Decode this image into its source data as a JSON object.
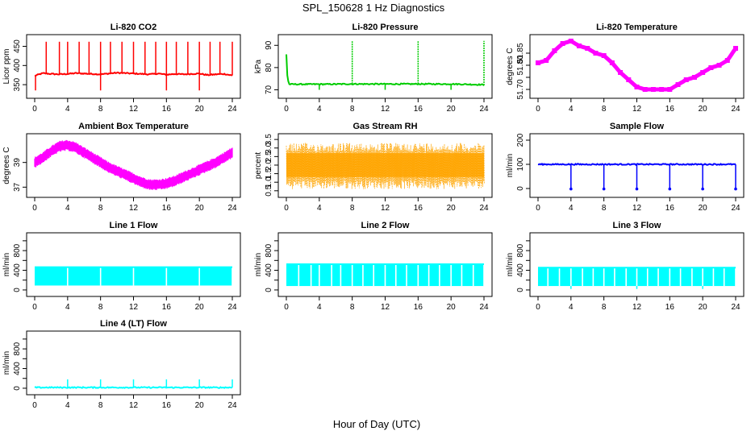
{
  "figure": {
    "title": "SPL_150628  1 Hz Diagnostics",
    "xlabel": "Hour of Day (UTC)"
  },
  "chart_data": [
    {
      "type": "line",
      "title": "Li-820 CO2",
      "ylabel": "Licor ppm",
      "color": "#ff0000",
      "xlim": [
        0,
        24
      ],
      "ylim": [
        325,
        470
      ],
      "xticks": [
        0,
        4,
        8,
        12,
        16,
        20,
        24
      ],
      "yticks": [
        350,
        400,
        450
      ],
      "x": [
        0,
        1,
        2,
        3,
        4,
        5,
        6,
        7,
        8,
        9,
        10,
        11,
        12,
        13,
        14,
        15,
        16,
        17,
        18,
        19,
        20,
        21,
        22,
        23,
        24
      ],
      "values": [
        373,
        380,
        378,
        377,
        378,
        380,
        379,
        378,
        377,
        379,
        381,
        380,
        379,
        378,
        377,
        379,
        376,
        378,
        377,
        378,
        379,
        375,
        377,
        378,
        374
      ],
      "spikes_up_x": [
        1.4,
        3.0,
        4.0,
        5.4,
        6.6,
        8.0,
        9.2,
        10.6,
        12.0,
        13.4,
        14.7,
        16.0,
        17.2,
        18.6,
        20.0,
        21.3,
        22.5,
        24.0
      ],
      "spike_top": 462,
      "spikes_down_x": [
        0.1,
        8.0,
        16.0,
        20.0
      ],
      "spike_bottom": 335
    },
    {
      "type": "line",
      "title": "Li-820 Pressure",
      "ylabel": "kPa",
      "color": "#00cc00",
      "xlim": [
        0,
        24
      ],
      "ylim": [
        68,
        93
      ],
      "xticks": [
        0,
        4,
        8,
        12,
        16,
        20,
        24
      ],
      "yticks": [
        70,
        80,
        90
      ],
      "x": [
        0,
        0.1,
        0.3,
        4,
        8,
        12,
        16,
        20,
        23.8,
        24
      ],
      "values": [
        86,
        77,
        72.5,
        72.5,
        72.6,
        72.6,
        72.6,
        72.6,
        72.3,
        72
      ],
      "spikes_up_x": [
        8.0,
        16.0,
        24.0
      ],
      "spike_top": 92,
      "spikes_down_x": [
        4.0,
        12.0,
        20.0
      ],
      "spike_bottom": 70
    },
    {
      "type": "line",
      "title": "Li-820 Temperature",
      "ylabel": "degrees C",
      "color": "#ff00ff",
      "xlim": [
        0,
        24
      ],
      "ylim": [
        51.68,
        51.91
      ],
      "xticks": [
        0,
        4,
        8,
        12,
        16,
        20,
        24
      ],
      "yticks": [
        51.7,
        51.75,
        51.8,
        51.85
      ],
      "yticklabels": [
        "51.70",
        "",
        "51.80",
        "51.85"
      ],
      "x": [
        0,
        1,
        2,
        3,
        4,
        5,
        6,
        7,
        8,
        9,
        10,
        11,
        12,
        13,
        14,
        15,
        16,
        17,
        18,
        19,
        20,
        21,
        22,
        23,
        24
      ],
      "values": [
        51.81,
        51.82,
        51.86,
        51.89,
        51.9,
        51.88,
        51.87,
        51.85,
        51.84,
        51.81,
        51.77,
        51.74,
        51.71,
        51.7,
        51.7,
        51.7,
        51.7,
        51.72,
        51.74,
        51.75,
        51.77,
        51.79,
        51.8,
        51.82,
        51.87
      ]
    },
    {
      "type": "line",
      "title": "Ambient Box Temperature",
      "ylabel": "degrees C",
      "color": "#ff00ff",
      "xlim": [
        0,
        24
      ],
      "ylim": [
        36.5,
        41
      ],
      "xticks": [
        0,
        4,
        8,
        12,
        16,
        20,
        24
      ],
      "yticks": [
        37,
        39
      ],
      "x": [
        0,
        1,
        2,
        3,
        4,
        5,
        6,
        7,
        8,
        9,
        10,
        11,
        12,
        13,
        14,
        15,
        16,
        17,
        18,
        19,
        20,
        21,
        22,
        23,
        24
      ],
      "values": [
        39.0,
        39.4,
        39.9,
        40.3,
        40.4,
        40.2,
        39.8,
        39.4,
        39.0,
        38.6,
        38.3,
        38.0,
        37.7,
        37.4,
        37.2,
        37.2,
        37.3,
        37.5,
        37.8,
        38.1,
        38.4,
        38.7,
        39.0,
        39.4,
        39.8
      ],
      "band": 0.9
    },
    {
      "type": "line",
      "title": "Gas Stream RH",
      "ylabel": "percent",
      "color": "#ffa500",
      "xlim": [
        0,
        24
      ],
      "ylim": [
        0.35,
        3.6
      ],
      "xticks": [
        0,
        4,
        8,
        12,
        16,
        20,
        24
      ],
      "yticks": [
        0.5,
        1.0,
        1.5,
        2.0,
        2.5,
        3.0,
        3.5
      ],
      "yticklabels": [
        "0.5",
        "1.0",
        "1.5",
        "2.0",
        "2.5",
        "3.0",
        "3.5"
      ],
      "x": [
        0,
        24
      ],
      "values": [
        2.0,
        2.0
      ],
      "range": [
        0.6,
        3.3
      ]
    },
    {
      "type": "line",
      "title": "Sample Flow",
      "ylabel": "ml/min",
      "color": "#0000ff",
      "xlim": [
        0,
        24
      ],
      "ylim": [
        -20,
        210
      ],
      "xticks": [
        0,
        4,
        8,
        12,
        16,
        20,
        24
      ],
      "yticks": [
        0,
        100,
        200
      ],
      "x": [
        0,
        24
      ],
      "values": [
        100,
        100
      ],
      "spikes_down_x": [
        4.0,
        8.0,
        12.0,
        16.0,
        20.0,
        24.0
      ],
      "spike_bottom": -2
    },
    {
      "type": "line",
      "title": "Line 1 Flow",
      "ylabel": "ml/min",
      "color": "#00ffff",
      "xlim": [
        0,
        24
      ],
      "ylim": [
        -50,
        1080
      ],
      "xticks": [
        0,
        4,
        8,
        12,
        16,
        20,
        24
      ],
      "yticks": [
        0,
        200,
        400,
        600,
        800,
        1000
      ],
      "yticklabels": [
        "0",
        "",
        "400",
        "",
        "800",
        ""
      ],
      "x": [
        0,
        24
      ],
      "values": [
        470,
        470
      ],
      "range": [
        90,
        480
      ],
      "gaps_x": [
        4.0,
        8.0,
        12.0,
        16.0,
        20.0,
        24.0
      ]
    },
    {
      "type": "line",
      "title": "Line 2 Flow",
      "ylabel": "ml/min",
      "color": "#00ffff",
      "xlim": [
        0,
        24
      ],
      "ylim": [
        -50,
        1080
      ],
      "xticks": [
        0,
        4,
        8,
        12,
        16,
        20,
        24
      ],
      "yticks": [
        0,
        200,
        400,
        600,
        800,
        1000
      ],
      "yticklabels": [
        "0",
        "",
        "400",
        "",
        "800",
        ""
      ],
      "x": [
        0,
        24
      ],
      "values": [
        520,
        520
      ],
      "range": [
        80,
        540
      ],
      "gaps_x": [
        1.5,
        3.0,
        4.0,
        5.5,
        6.6,
        8.0,
        9.3,
        10.6,
        12.0,
        13.3,
        14.6,
        16.0,
        17.3,
        18.6,
        20.0,
        21.3,
        22.7,
        24.0
      ]
    },
    {
      "type": "line",
      "title": "Line 3 Flow",
      "ylabel": "ml/min",
      "color": "#00ffff",
      "xlim": [
        0,
        24
      ],
      "ylim": [
        -50,
        1080
      ],
      "xticks": [
        0,
        4,
        8,
        12,
        16,
        20,
        24
      ],
      "yticks": [
        0,
        200,
        400,
        600,
        800,
        1000
      ],
      "yticklabels": [
        "0",
        "",
        "400",
        "",
        "800",
        ""
      ],
      "x": [
        0,
        24
      ],
      "values": [
        460,
        460
      ],
      "range": [
        80,
        470
      ],
      "gaps_x": [
        1.2,
        2.6,
        4.0,
        5.4,
        6.7,
        8.0,
        9.3,
        10.7,
        12.0,
        13.3,
        14.6,
        16.0,
        17.3,
        18.7,
        20.0,
        21.3,
        22.6,
        24.0
      ],
      "spikes_down_x": [
        4.0,
        12.0,
        20.0
      ],
      "spike_bottom": 20
    },
    {
      "type": "line",
      "title": "Line 4 (LT) Flow",
      "ylabel": "ml/min",
      "color": "#00ffff",
      "xlim": [
        0,
        24
      ],
      "ylim": [
        -50,
        1080
      ],
      "xticks": [
        0,
        4,
        8,
        12,
        16,
        20,
        24
      ],
      "yticks": [
        0,
        200,
        400,
        600,
        800,
        1000
      ],
      "yticklabels": [
        "0",
        "",
        "400",
        "",
        "800",
        ""
      ],
      "x": [
        0,
        24
      ],
      "values": [
        15,
        15
      ],
      "spikes_up_x": [
        4.0,
        8.0,
        12.0,
        16.0,
        20.0,
        24.0
      ],
      "spike_top": 180
    }
  ]
}
